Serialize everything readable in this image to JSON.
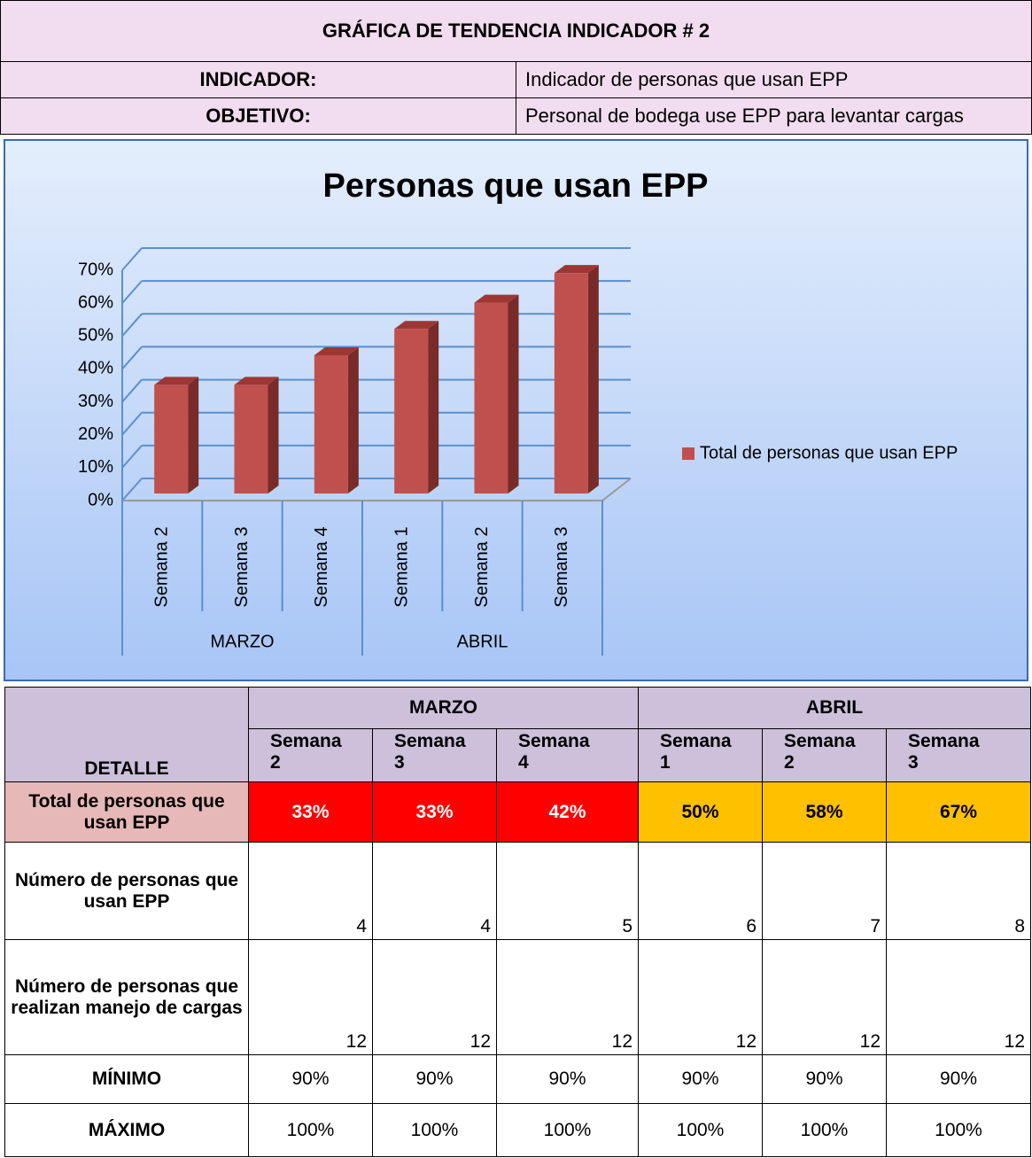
{
  "header": {
    "title": "GRÁFICA DE TENDENCIA INDICADOR # 2",
    "rows": [
      {
        "label": "INDICADOR:",
        "value": "Indicador de personas que usan EPP"
      },
      {
        "label": "OBJETIVO:",
        "value": "Personal de bodega use EPP para levantar cargas"
      }
    ]
  },
  "chart_data": {
    "type": "bar",
    "title": "Personas que usan EPP",
    "groups": [
      {
        "label": "MARZO",
        "categories": [
          "Semana 2",
          "Semana 3",
          "Semana 4"
        ]
      },
      {
        "label": "ABRIL",
        "categories": [
          "Semana 1",
          "Semana 2",
          "Semana 3"
        ]
      }
    ],
    "series": [
      {
        "name": "Total de personas que usan EPP",
        "color": "#c0504d",
        "values": [
          33,
          33,
          42,
          50,
          58,
          67
        ]
      }
    ],
    "ylim": [
      0,
      70
    ],
    "yticks": [
      {
        "value": 0,
        "label": "0%"
      },
      {
        "value": 10,
        "label": "10%"
      },
      {
        "value": 20,
        "label": "20%"
      },
      {
        "value": 30,
        "label": "30%"
      },
      {
        "value": 40,
        "label": "40%"
      },
      {
        "value": 50,
        "label": "50%"
      },
      {
        "value": 60,
        "label": "60%"
      },
      {
        "value": 70,
        "label": "70%"
      }
    ],
    "grid": true,
    "legend": "right"
  },
  "table": {
    "corner": "DETALLE",
    "groups": [
      "MARZO",
      "ABRIL"
    ],
    "columns": [
      "Semana 2",
      "Semana 3",
      "Semana 4",
      "Semana 1",
      "Semana 2",
      "Semana 3"
    ],
    "rows": [
      {
        "label": "Total de personas que usan EPP",
        "cells": [
          "33%",
          "33%",
          "42%",
          "50%",
          "58%",
          "67%"
        ],
        "colors": [
          "#ff0000",
          "#ff0000",
          "#ff0000",
          "#ffc000",
          "#ffc000",
          "#ffc000"
        ]
      },
      {
        "label": "Número de personas que usan EPP",
        "cells": [
          4,
          4,
          5,
          6,
          7,
          8
        ]
      },
      {
        "label": "Número de personas que realizan manejo de cargas",
        "cells": [
          12,
          12,
          12,
          12,
          12,
          12
        ]
      },
      {
        "label": "MÍNIMO",
        "cells": [
          "90%",
          "90%",
          "90%",
          "90%",
          "90%",
          "90%"
        ]
      },
      {
        "label": "MÁXIMO",
        "cells": [
          "100%",
          "100%",
          "100%",
          "100%",
          "100%",
          "100%"
        ]
      }
    ]
  }
}
